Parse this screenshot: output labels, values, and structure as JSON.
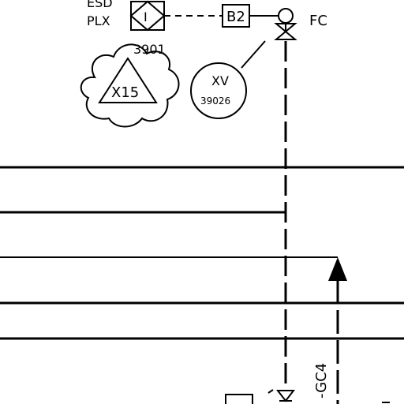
{
  "diagram": {
    "esd_label": "ESD",
    "plx_label": "PLX",
    "interlock_symbol": "I",
    "interlock_tag": "3901",
    "block_label": "B2",
    "valve_failure_mode": "FC",
    "instrument_function": "XV",
    "instrument_tag": "39026",
    "revision_cloud_label": "X15",
    "line_spec": "-GC4",
    "colors": {
      "ink": "#000000",
      "background": "#ffffff"
    }
  }
}
